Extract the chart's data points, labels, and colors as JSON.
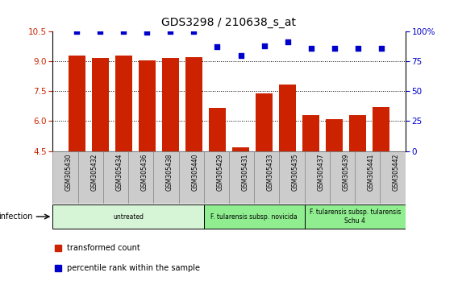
{
  "title": "GDS3298 / 210638_s_at",
  "samples": [
    "GSM305430",
    "GSM305432",
    "GSM305434",
    "GSM305436",
    "GSM305438",
    "GSM305440",
    "GSM305429",
    "GSM305431",
    "GSM305433",
    "GSM305435",
    "GSM305437",
    "GSM305439",
    "GSM305441",
    "GSM305442"
  ],
  "red_values": [
    9.3,
    9.15,
    9.3,
    9.05,
    9.15,
    9.2,
    6.65,
    4.7,
    7.4,
    7.85,
    6.3,
    6.1,
    6.3,
    6.7
  ],
  "blue_values": [
    100,
    100,
    100,
    99,
    100,
    100,
    87,
    80,
    88,
    91,
    86,
    86,
    86,
    86
  ],
  "ylim_left": [
    4.5,
    10.5
  ],
  "ylim_right": [
    0,
    100
  ],
  "yticks_left": [
    4.5,
    6.0,
    7.5,
    9.0,
    10.5
  ],
  "yticks_right": [
    0,
    25,
    50,
    75,
    100
  ],
  "group_labels": [
    "untreated",
    "F. tularensis subsp. novicida",
    "F. tularensis subsp. tularensis\nSchu 4"
  ],
  "group_ranges": [
    [
      0,
      5
    ],
    [
      6,
      9
    ],
    [
      10,
      13
    ]
  ],
  "group_colors_light": "#d6f5d6",
  "group_colors_mid": "#90ee90",
  "bar_color": "#cc2200",
  "dot_color": "#0000cc",
  "infection_label": "infection",
  "legend_red": "transformed count",
  "legend_blue": "percentile rank within the sample",
  "bar_width": 0.7
}
